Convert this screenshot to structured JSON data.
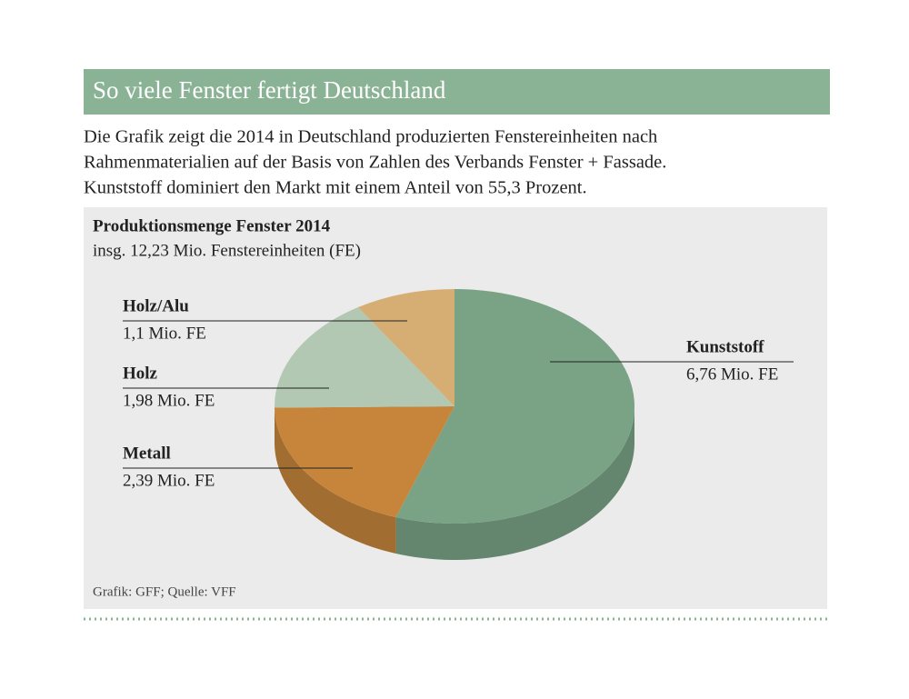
{
  "header": {
    "title": "So viele Fenster fertigt Deutschland",
    "text": [
      "Die Grafik zeigt die 2014 in Deutschland produzierten Fenstereinheiten nach",
      "Rahmenmaterialien auf der Basis von Zahlen des Verbands Fenster + Fassade.",
      "Kunststoff dominiert den Markt mit einem Anteil von 55,3 Prozent."
    ]
  },
  "chart_data": {
    "type": "pie",
    "title": "Produktionsmenge Fenster 2014",
    "subtitle": "insg. 12,23 Mio. Fenstereinheiten (FE)",
    "categories": [
      "Kunststoff",
      "Metall",
      "Holz",
      "Holz/Alu"
    ],
    "values": [
      6.76,
      2.39,
      1.98,
      1.1
    ],
    "value_labels": [
      "6,76 Mio. FE",
      "2,39 Mio. FE",
      "1,98 Mio. FE",
      "1,1 Mio. FE"
    ],
    "colors": [
      "#7aa386",
      "#c6853a",
      "#b3c8b3",
      "#d6ae74"
    ]
  },
  "source": "Grafik: GFF; Quelle: VFF"
}
